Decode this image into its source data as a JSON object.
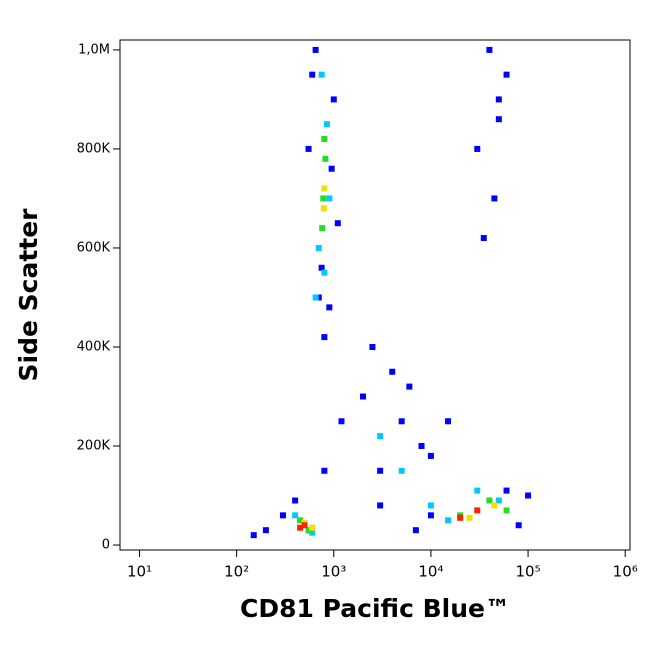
{
  "chart_data": {
    "type": "scatter",
    "xlabel": "CD81 Pacific Blue™",
    "ylabel": "Side Scatter",
    "xscale": "log",
    "xlim": [
      6.3,
      1120000
    ],
    "ylim": [
      -10000,
      1020000
    ],
    "xticks": [
      {
        "value": 10,
        "label": "10¹"
      },
      {
        "value": 100,
        "label": "10²"
      },
      {
        "value": 1000,
        "label": "10³"
      },
      {
        "value": 10000,
        "label": "10⁴"
      },
      {
        "value": 100000,
        "label": "10⁵"
      },
      {
        "value": 1000000,
        "label": "10⁶"
      }
    ],
    "yticks": [
      0,
      {
        "value": 200000,
        "label": "200K"
      },
      {
        "value": 400000,
        "label": "400K"
      },
      {
        "value": 600000,
        "label": "600K"
      },
      {
        "value": 800000,
        "label": "800K"
      },
      {
        "value": 1000000,
        "label": "1,0M"
      }
    ],
    "series": [
      {
        "color": "#0000ff",
        "x": [
          600,
          1000,
          700,
          900,
          550,
          1100,
          650,
          800,
          750,
          950,
          300,
          200,
          150,
          400,
          800,
          1200,
          3000,
          5000,
          2000,
          8000,
          4000,
          10000,
          6000,
          3000,
          15000,
          2500,
          10000,
          80000,
          100000,
          60000,
          7000,
          40000,
          50000,
          30000,
          45000,
          60000,
          35000,
          50000
        ],
        "y": [
          950000,
          900000,
          500000,
          480000,
          800000,
          650000,
          1000000,
          420000,
          560000,
          760000,
          60000,
          30000,
          20000,
          90000,
          150000,
          250000,
          150000,
          250000,
          300000,
          200000,
          350000,
          180000,
          320000,
          80000,
          250000,
          400000,
          60000,
          40000,
          100000,
          110000,
          30000,
          1000000,
          900000,
          800000,
          700000,
          950000,
          620000,
          860000
        ]
      },
      {
        "color": "#00c8ff",
        "x": [
          700,
          850,
          750,
          900,
          650,
          800,
          400,
          600,
          15000,
          30000,
          50000,
          10000,
          5000,
          3000
        ],
        "y": [
          600000,
          850000,
          950000,
          700000,
          500000,
          550000,
          60000,
          25000,
          50000,
          110000,
          90000,
          80000,
          150000,
          220000
        ]
      },
      {
        "color": "#22dd22",
        "x": [
          780,
          820,
          760,
          800,
          450,
          550,
          20000,
          40000,
          60000
        ],
        "y": [
          700000,
          780000,
          640000,
          820000,
          50000,
          30000,
          60000,
          90000,
          70000
        ]
      },
      {
        "color": "#f0e000",
        "x": [
          800,
          790,
          500,
          600,
          25000,
          45000
        ],
        "y": [
          720000,
          680000,
          45000,
          35000,
          55000,
          80000
        ]
      },
      {
        "color": "#ff2000",
        "x": [
          500,
          450,
          30000,
          20000
        ],
        "y": [
          40000,
          35000,
          70000,
          55000
        ]
      }
    ]
  }
}
